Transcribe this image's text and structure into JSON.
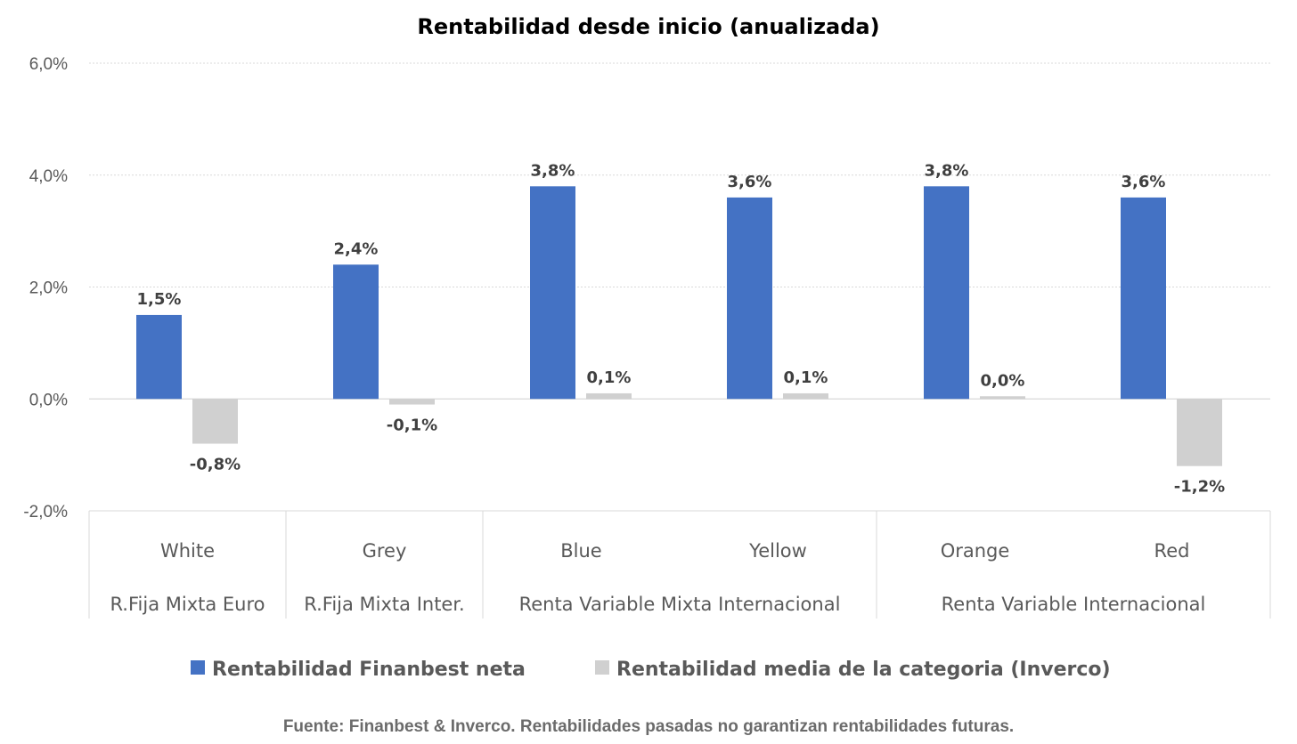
{
  "chart_data": {
    "type": "bar",
    "title": "Rentabilidad desde inicio (anualizada)",
    "categories": [
      "White",
      "Grey",
      "Blue",
      "Yellow",
      "Orange",
      "Red"
    ],
    "category_groups": [
      {
        "label": "R.Fija Mixta Euro",
        "members": [
          "White"
        ]
      },
      {
        "label": "R.Fija Mixta Inter.",
        "members": [
          "Grey"
        ]
      },
      {
        "label": "Renta Variable Mixta Internacional",
        "members": [
          "Blue",
          "Yellow"
        ]
      },
      {
        "label": "Renta Variable Internacional",
        "members": [
          "Orange",
          "Red"
        ]
      }
    ],
    "series": [
      {
        "name": "Rentabilidad Finanbest neta",
        "color": "#4472C4",
        "values": [
          1.5,
          2.4,
          3.8,
          3.6,
          3.8,
          3.6
        ],
        "labels": [
          "1,5%",
          "2,4%",
          "3,8%",
          "3,6%",
          "3,8%",
          "3,6%"
        ]
      },
      {
        "name": "Rentabilidad media de la categoria (Inverco)",
        "color": "#D0D0D0",
        "values": [
          -0.8,
          -0.1,
          0.1,
          0.1,
          0.0,
          -1.2
        ],
        "labels": [
          "-0,8%",
          "-0,1%",
          "0,1%",
          "0,1%",
          "0,0%",
          "-1,2%"
        ]
      }
    ],
    "ylim": [
      -2,
      6
    ],
    "yticks": [
      6,
      4,
      2,
      0,
      -2
    ],
    "ytick_labels": [
      "6,0%",
      "4,0%",
      "2,0%",
      "0,0%",
      "-2,0%"
    ],
    "grid": true,
    "legend_position": "bottom",
    "xlabel": "",
    "ylabel": ""
  },
  "footer": "Fuente: Finanbest & Inverco. Rentabilidades pasadas no garantizan rentabilidades futuras."
}
